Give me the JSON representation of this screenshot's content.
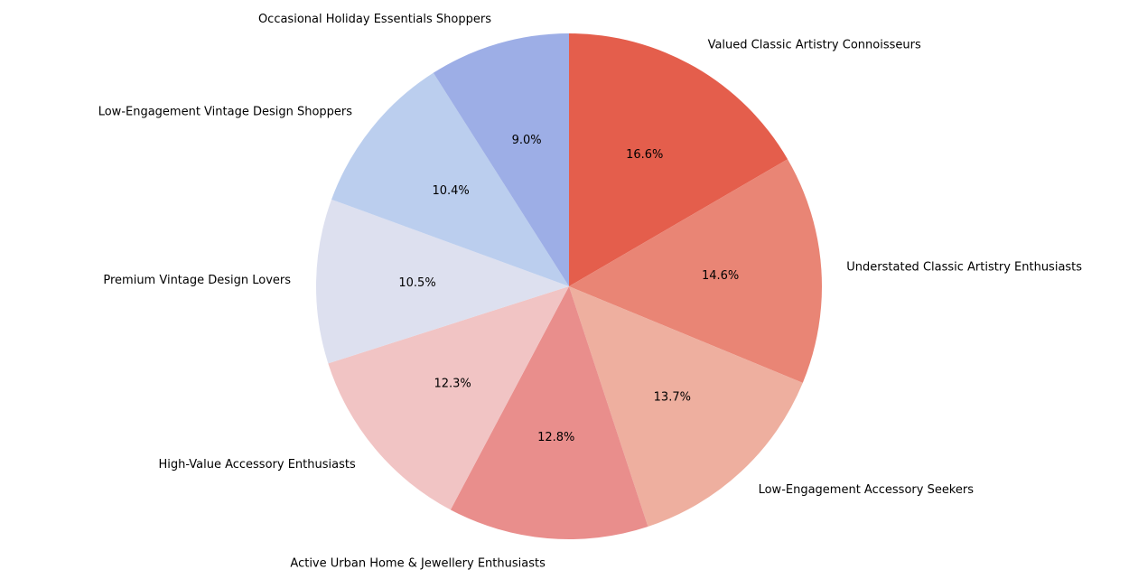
{
  "chart_data": {
    "type": "pie",
    "title": "",
    "start_angle_deg": 90,
    "direction": "clockwise",
    "slices": [
      {
        "label": "Valued Classic Artistry Connoisseurs",
        "value": 16.6,
        "pct_label": "16.6%",
        "color": "#e45e4c"
      },
      {
        "label": "Understated Classic Artistry Enthusiasts",
        "value": 14.6,
        "pct_label": "14.6%",
        "color": "#e98575"
      },
      {
        "label": "Low-Engagement Accessory Seekers",
        "value": 13.7,
        "pct_label": "13.7%",
        "color": "#eeaf9f"
      },
      {
        "label": "Active Urban Home & Jewellery Enthusiasts",
        "value": 12.8,
        "pct_label": "12.8%",
        "color": "#e98e8c"
      },
      {
        "label": "High-Value Accessory Enthusiasts",
        "value": 12.3,
        "pct_label": "12.3%",
        "color": "#f1c4c4"
      },
      {
        "label": "Premium Vintage Design Lovers",
        "value": 10.5,
        "pct_label": "10.5%",
        "color": "#dde0ef"
      },
      {
        "label": "Low-Engagement Vintage Design Shoppers",
        "value": 10.4,
        "pct_label": "10.4%",
        "color": "#bbceee"
      },
      {
        "label": "Occasional Holiday Essentials Shoppers",
        "value": 9.0,
        "pct_label": "9.0%",
        "color": "#9daee6"
      }
    ]
  }
}
